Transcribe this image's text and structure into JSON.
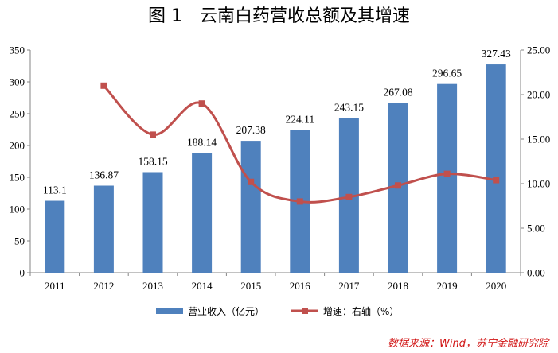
{
  "title": "图 1　云南白药营收总额及其增速",
  "source": "数据来源：Wind，苏宁金融研究院",
  "chart_data": {
    "type": "bar",
    "categories": [
      "2011",
      "2012",
      "2013",
      "2014",
      "2015",
      "2016",
      "2017",
      "2018",
      "2019",
      "2020"
    ],
    "series": [
      {
        "name": "营业收入（亿元）",
        "type": "bar",
        "axis": "left",
        "values": [
          113.1,
          136.87,
          158.15,
          188.14,
          207.38,
          224.11,
          243.15,
          267.08,
          296.65,
          327.43
        ],
        "labels": [
          "113.1",
          "136.87",
          "158.15",
          "188.14",
          "207.38",
          "224.11",
          "243.15",
          "267.08",
          "296.65",
          "327.43"
        ],
        "color": "#4f81bd"
      },
      {
        "name": "增速：右轴（%）",
        "type": "line",
        "axis": "right",
        "values": [
          null,
          21.0,
          15.5,
          19.0,
          10.2,
          8.0,
          8.5,
          9.8,
          11.1,
          10.4
        ],
        "color": "#c0504d"
      }
    ],
    "ylim_left": [
      0,
      350
    ],
    "yticks_left": [
      "0",
      "50",
      "100",
      "150",
      "200",
      "250",
      "300",
      "350"
    ],
    "ylim_right": [
      0,
      25
    ],
    "yticks_right": [
      "0.00",
      "5.00",
      "10.00",
      "15.00",
      "20.00",
      "25.00"
    ],
    "grid": false,
    "legend_position": "bottom"
  }
}
